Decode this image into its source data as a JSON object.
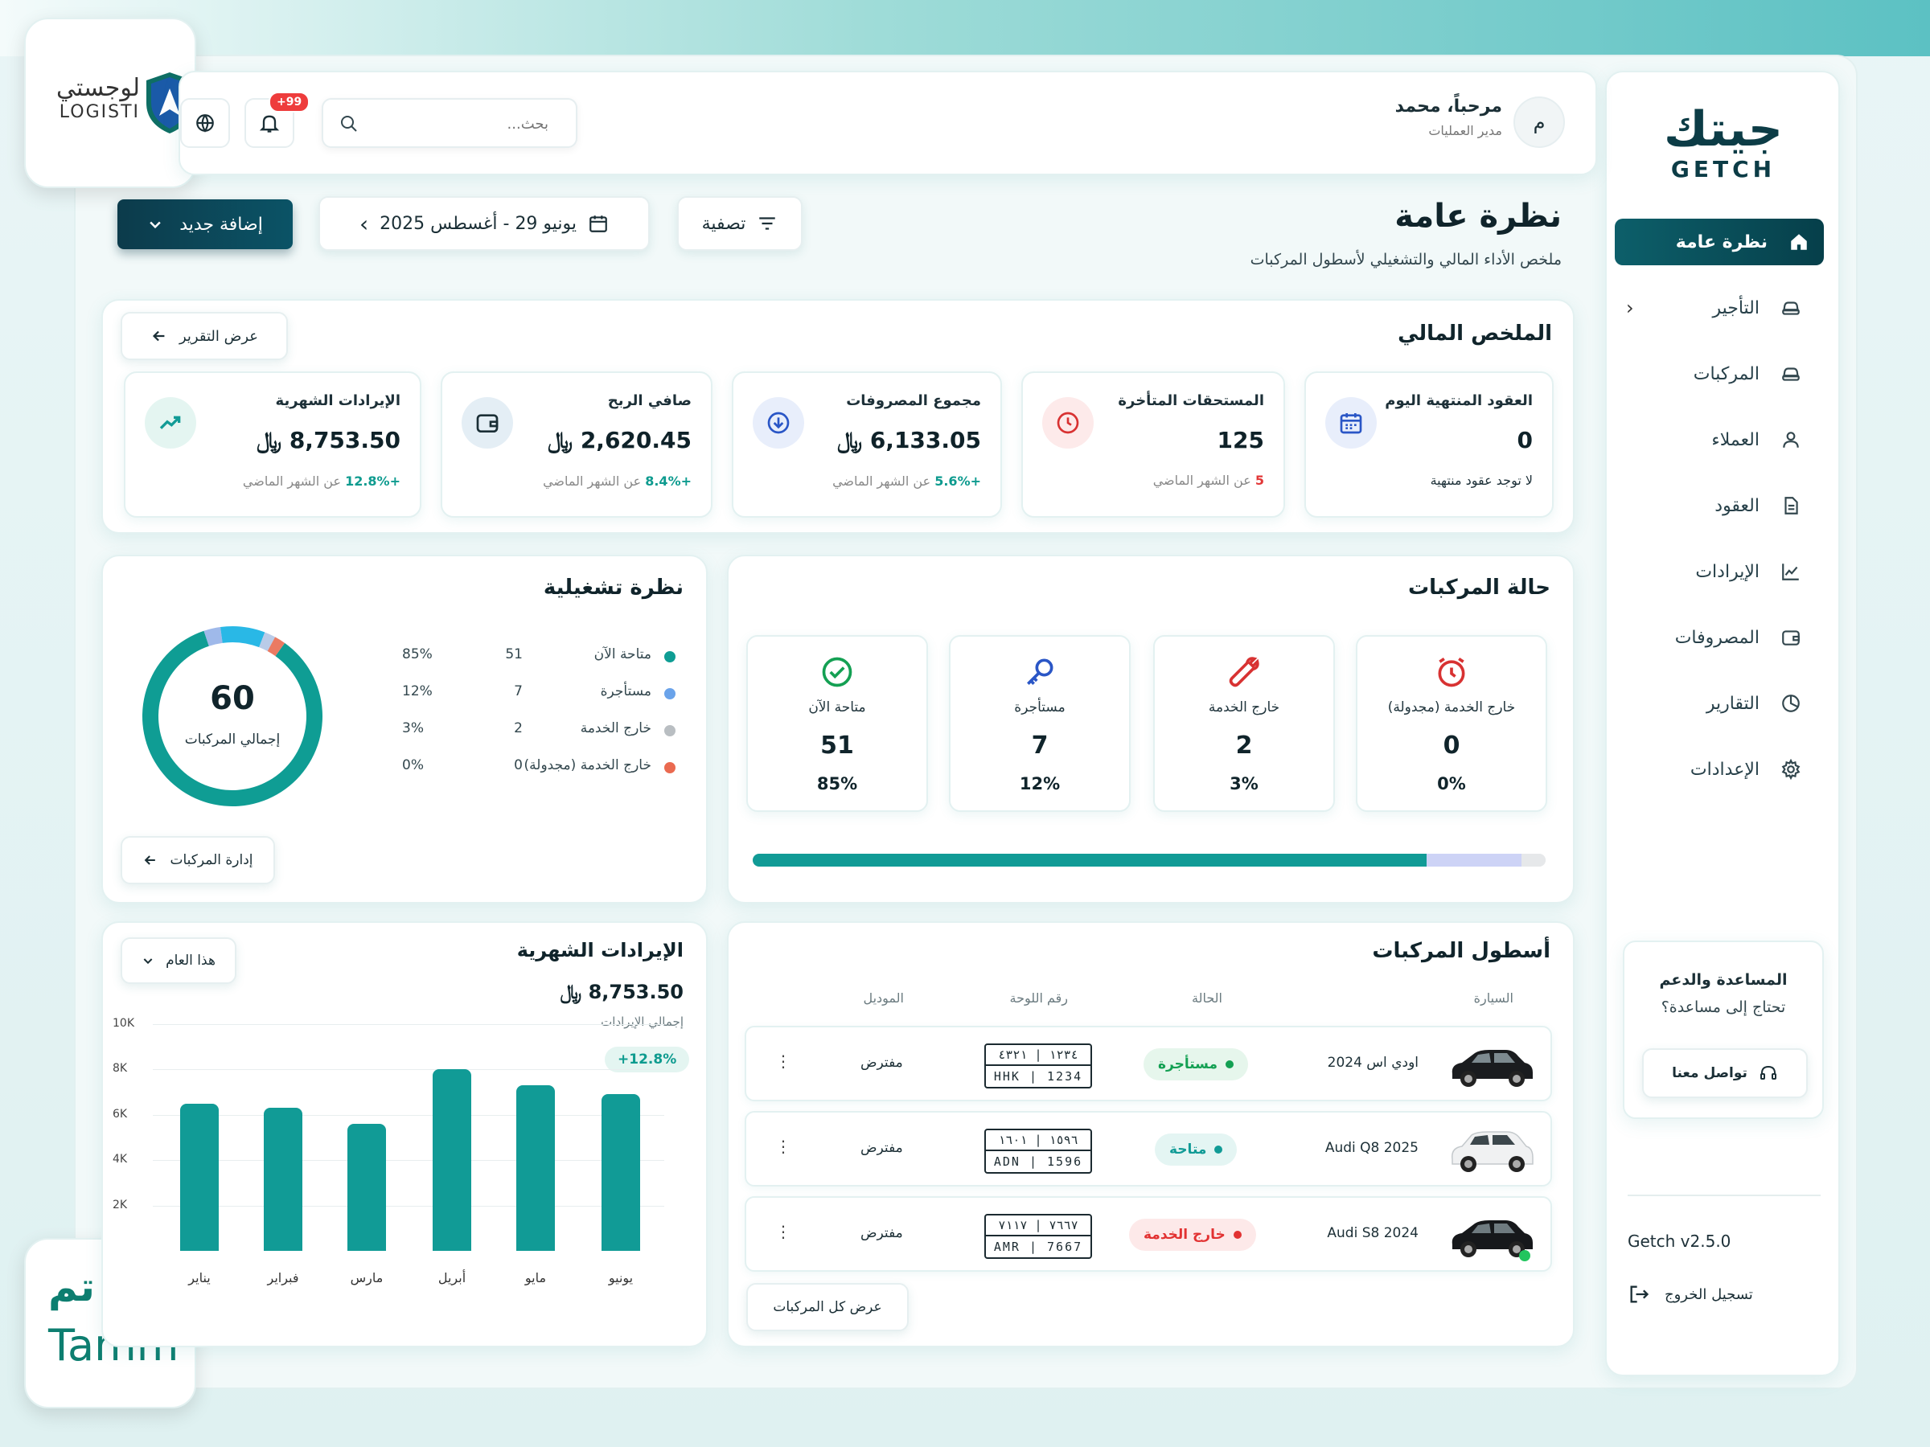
{
  "brand": {
    "name_ar": "جيتك",
    "name_en": "GETCH",
    "version": "Getch v2.5.0"
  },
  "badges": {
    "logisti_ar": "لوجستي",
    "logisti_en": "LOGISTI",
    "tamm_ar": "تم",
    "tamm_en": "Tamm"
  },
  "header": {
    "greeting": "مرحباً، محمد",
    "role": "مدير العمليات",
    "avatar_letter": "م",
    "search_placeholder": "بحث...",
    "notifications": "+99"
  },
  "sidebar": {
    "items": [
      {
        "label": "نظرة عامة",
        "icon": "home-icon"
      },
      {
        "label": "التأجير",
        "icon": "car-icon"
      },
      {
        "label": "المركبات",
        "icon": "car-icon"
      },
      {
        "label": "العملاء",
        "icon": "user-icon"
      },
      {
        "label": "العقود",
        "icon": "document-icon"
      },
      {
        "label": "الإيرادات",
        "icon": "chart-line-icon"
      },
      {
        "label": "المصروفات",
        "icon": "wallet-icon"
      },
      {
        "label": "التقارير",
        "icon": "pie-chart-icon"
      },
      {
        "label": "الإعدادات",
        "icon": "gear-icon"
      }
    ],
    "support": {
      "title": "المساعدة والدعم",
      "subtitle": "تحتاج إلى مساعدة؟",
      "contact": "تواصل معنا"
    },
    "logout": "تسجيل الخروج"
  },
  "page": {
    "title": "نظرة عامة",
    "subtitle": "ملخص الأداء المالي والتشغيلي لأسطول المركبات",
    "filter": "تصفية",
    "date_range": "يونيو 29 - أغسطس 2025",
    "add_new": "إضافة جديد"
  },
  "financial": {
    "title": "الملخص المالي",
    "report_btn": "عرض التقرير",
    "cards": [
      {
        "label": "العقود المنتهية اليوم",
        "value": "0",
        "note": "لا توجد عقود منتهية",
        "icon": "calendar-icon"
      },
      {
        "label": "المستحقات المتأخرة",
        "value": "125",
        "change": "5",
        "suffix": "عن الشهر الماضي",
        "icon": "clock-icon"
      },
      {
        "label": "مجموع المصروفات",
        "value": "6,133.05 ﷼",
        "change": "+5.6%",
        "suffix": "عن الشهر الماضي",
        "icon": "download-icon"
      },
      {
        "label": "صافي الربح",
        "value": "2,620.45 ﷼",
        "change": "+8.4%",
        "suffix": "عن الشهر الماضي",
        "icon": "wallet-icon"
      },
      {
        "label": "الإيرادات الشهرية",
        "value": "8,753.50 ﷼",
        "change": "+12.8%",
        "suffix": "عن الشهر الماضي",
        "icon": "trend-up-icon"
      }
    ]
  },
  "vehicle_status": {
    "title": "حالة المركبات",
    "cards": [
      {
        "label": "خارج الخدمة (مجدولة)",
        "value": "0",
        "pct": "0%",
        "icon": "alarm-clock-icon"
      },
      {
        "label": "خارج الخدمة",
        "value": "2",
        "pct": "3%",
        "icon": "wrench-icon"
      },
      {
        "label": "مستأجرة",
        "value": "7",
        "pct": "12%",
        "icon": "key-icon"
      },
      {
        "label": "متاحة الآن",
        "value": "51",
        "pct": "85%",
        "icon": "check-circle-icon"
      }
    ],
    "bar_segments": [
      {
        "name": "متاحة الآن",
        "fraction": 0.85,
        "color": "#119b96"
      },
      {
        "name": "مستأجرة",
        "fraction": 0.12,
        "color": "#cdd3f6"
      },
      {
        "name": "خارج الخدمة",
        "fraction": 0.03,
        "color": "#e6e8ea"
      }
    ]
  },
  "operational": {
    "title": "نظرة تشغيلية",
    "total": "60",
    "total_label": "إجمالي المركبات",
    "manage_btn": "إدارة المركبات",
    "legend": [
      {
        "label": "متاحة الآن",
        "count": "51",
        "pct": "85%",
        "color": "#0f9d94"
      },
      {
        "label": "مستأجرة",
        "count": "7",
        "pct": "12%",
        "color": "#6aa3ea"
      },
      {
        "label": "خارج الخدمة",
        "count": "2",
        "pct": "3%",
        "color": "#b9bec2"
      },
      {
        "label": "خارج الخدمة (مجدولة)",
        "count": "0",
        "pct": "0%",
        "color": "#ea6a50"
      }
    ]
  },
  "fleet": {
    "title": "أسطول المركبات",
    "headers": {
      "car": "السيارة",
      "status": "الحالة",
      "plate": "رقم اللوحة",
      "model": "الموديل"
    },
    "rows": [
      {
        "car": "اودي اس 2024",
        "status": "مستأجرة",
        "status_color": "#14a053",
        "status_bg": "#e6f6ec",
        "plate_top": "١٢٣٤ | ٤٣٢١",
        "plate_bottom": "HHK | 1234",
        "model": "مفترض",
        "car_color": "#1a1c1f"
      },
      {
        "car": "Audi Q8 2025",
        "status": "متاحة",
        "status_color": "#119b96",
        "status_bg": "#e4f5f3",
        "plate_top": "١٥٩٦ | ١٦٠١",
        "plate_bottom": "ADN | 1596",
        "model": "مفترض",
        "car_color": "#f4f5f6"
      },
      {
        "car": "Audi S8 2024",
        "status": "خارج الخدمة",
        "status_color": "#e23232",
        "status_bg": "#fde9e9",
        "plate_top": "٧٦٦٧ | ٧١١٧",
        "plate_bottom": "AMR | 7667",
        "model": "مفترض",
        "car_color": "#16181b"
      }
    ],
    "view_all": "عرض كل المركبات"
  },
  "monthly_revenue": {
    "title": "الإيرادات الشهرية",
    "total": "8,753.50 ﷼",
    "total_label": "إجمالي الإيرادات",
    "change": "+12.8%",
    "period": "هذا العام"
  },
  "chart_data": {
    "type": "bar",
    "categories": [
      "يناير",
      "فبراير",
      "مارس",
      "أبريل",
      "مايو",
      "يونيو"
    ],
    "values": [
      6500,
      6300,
      5600,
      8000,
      7300,
      6900
    ],
    "yticks": [
      "2K",
      "4K",
      "6K",
      "8K",
      "10K"
    ],
    "ylim": [
      0,
      10000
    ],
    "color": "#119b96"
  }
}
